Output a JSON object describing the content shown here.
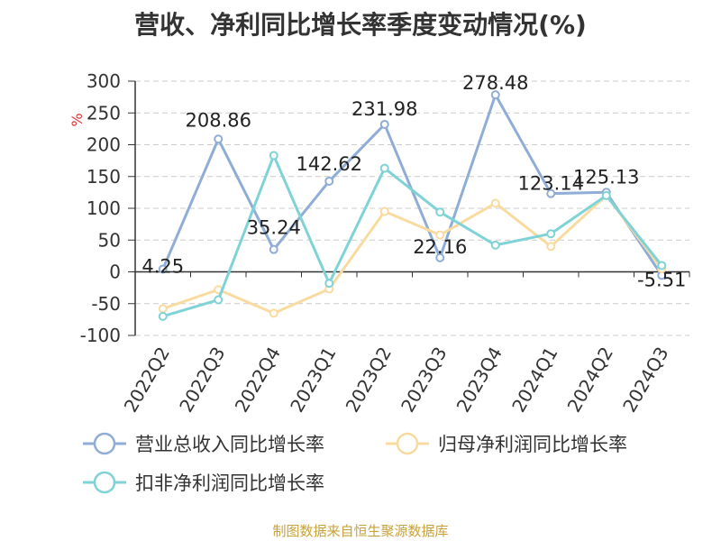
{
  "title": "营收、净利同比增长率季度变动情况(%)",
  "footer": "制图数据来自恒生聚源数据库",
  "chart_data": {
    "type": "line",
    "title": "营收、净利同比增长率季度变动情况(%)",
    "ylabel": "%",
    "ylim": [
      -100,
      300
    ],
    "yticks": [
      300,
      250,
      200,
      150,
      100,
      50,
      0,
      -50,
      -100
    ],
    "grid": true,
    "legend_position": "bottom",
    "categories": [
      "2022Q2",
      "2022Q3",
      "2022Q4",
      "2023Q1",
      "2023Q2",
      "2023Q3",
      "2023Q4",
      "2024Q1",
      "2024Q2",
      "2024Q3"
    ],
    "series": [
      {
        "name": "营业总收入同比增长率",
        "color": "#8fadd6",
        "values": [
          4.25,
          208.86,
          35.24,
          142.62,
          231.98,
          22.16,
          278.48,
          123.14,
          125.13,
          -5.51
        ],
        "labels": [
          "4.25",
          "208.86",
          "35.24",
          "142.62",
          "231.98",
          "22.16",
          "278.48",
          "123.14",
          "125.13",
          "-5.51"
        ]
      },
      {
        "name": "归母净利润同比增长率",
        "color": "#f9dba0",
        "values": [
          -58,
          -28,
          -65,
          -27,
          95,
          58,
          108,
          40,
          120,
          5
        ]
      },
      {
        "name": "扣非净利润同比增长率",
        "color": "#7fd3d6",
        "values": [
          -70,
          -44,
          183,
          -18,
          163,
          94,
          42,
          60,
          120,
          10
        ]
      }
    ]
  }
}
